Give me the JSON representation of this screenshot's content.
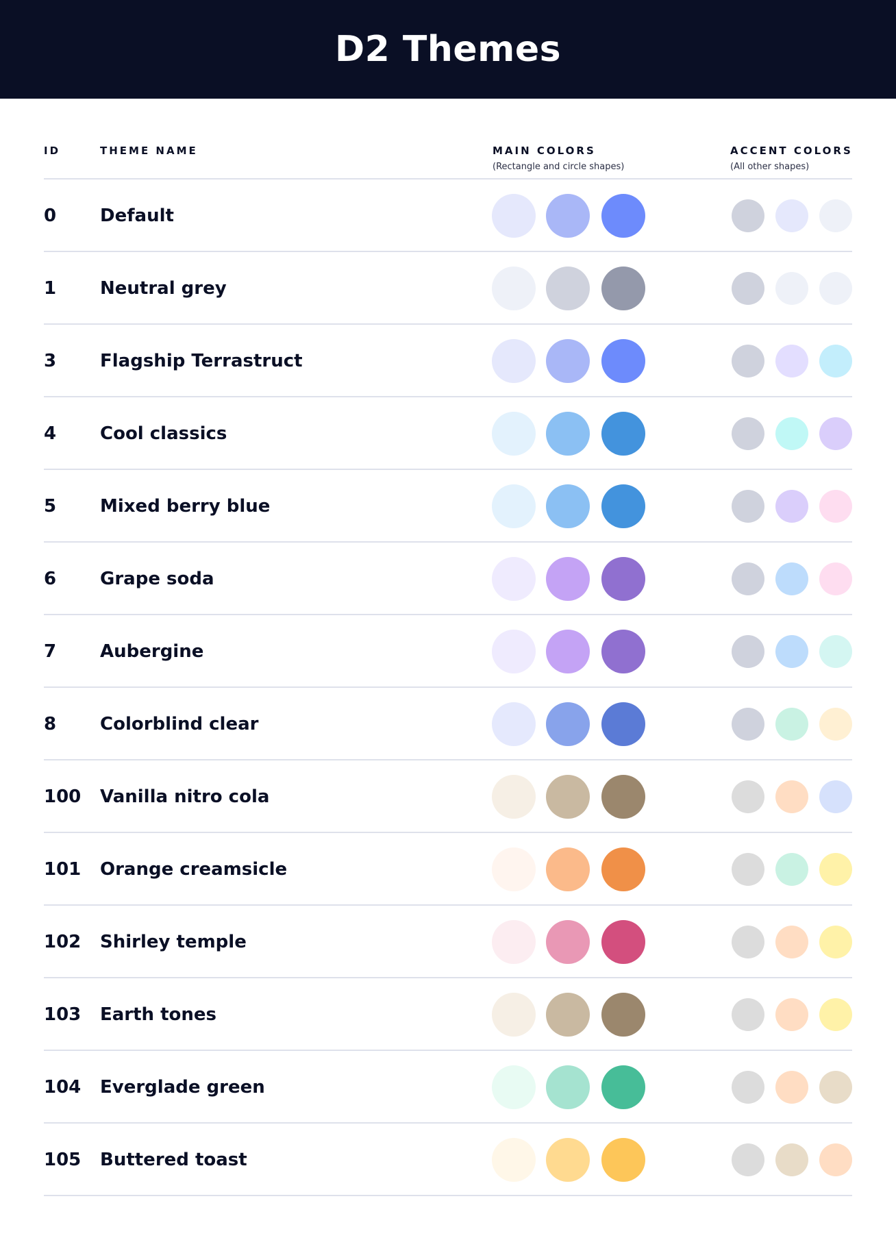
{
  "title": "D2 Themes",
  "columns": {
    "id": "ID",
    "name": "THEME NAME",
    "main": "MAIN COLORS",
    "main_sub": "(Rectangle and circle shapes)",
    "accent": "ACCENT COLORS",
    "accent_sub": "(All other shapes)"
  },
  "themes": [
    {
      "id": "0",
      "name": "Default",
      "main": [
        "#E5E8FC",
        "#A9B7F7",
        "#6D8BFC"
      ],
      "accent": [
        "#CFD2DD",
        "#E5E8FC",
        "#EEF1F8"
      ]
    },
    {
      "id": "1",
      "name": "Neutral grey",
      "main": [
        "#EEF1F8",
        "#CFD2DD",
        "#9499AB"
      ],
      "accent": [
        "#CFD2DD",
        "#EEF1F8",
        "#EEF1F8"
      ]
    },
    {
      "id": "3",
      "name": "Flagship Terrastruct",
      "main": [
        "#E5E8FC",
        "#A9B7F7",
        "#6D8BFC"
      ],
      "accent": [
        "#CFD2DD",
        "#E3DEFF",
        "#C3EEFC"
      ]
    },
    {
      "id": "4",
      "name": "Cool classics",
      "main": [
        "#E3F2FD",
        "#8BC0F3",
        "#4393DD"
      ],
      "accent": [
        "#CFD2DD",
        "#C0F8F6",
        "#DACEFB"
      ]
    },
    {
      "id": "5",
      "name": "Mixed berry blue",
      "main": [
        "#E3F2FD",
        "#8BC0F3",
        "#4393DD"
      ],
      "accent": [
        "#CFD2DD",
        "#DACEFB",
        "#FEDDF0"
      ]
    },
    {
      "id": "6",
      "name": "Grape soda",
      "main": [
        "#EFEBFE",
        "#C4A3F5",
        "#9070D0"
      ],
      "accent": [
        "#CFD2DD",
        "#BDDCFC",
        "#FEDDF0"
      ]
    },
    {
      "id": "7",
      "name": "Aubergine",
      "main": [
        "#EFEBFE",
        "#C4A3F5",
        "#9070D0"
      ],
      "accent": [
        "#CFD2DD",
        "#BDDCFC",
        "#D4F6F2"
      ]
    },
    {
      "id": "8",
      "name": "Colorblind clear",
      "main": [
        "#E5E9FD",
        "#88A3EB",
        "#5B7BD6"
      ],
      "accent": [
        "#CFD2DD",
        "#C9F2E3",
        "#FFF0D3"
      ]
    },
    {
      "id": "100",
      "name": "Vanilla nitro cola",
      "main": [
        "#F6EFE5",
        "#C9B9A1",
        "#9B876D"
      ],
      "accent": [
        "#DCDCDC",
        "#FFDDC3",
        "#D6E1FC"
      ]
    },
    {
      "id": "101",
      "name": "Orange creamsicle",
      "main": [
        "#FFF5EF",
        "#FBBA8A",
        "#F09048"
      ],
      "accent": [
        "#DCDCDC",
        "#C9F2E3",
        "#FFF2A8"
      ]
    },
    {
      "id": "102",
      "name": "Shirley temple",
      "main": [
        "#FCEDF1",
        "#E998B5",
        "#D34F7E"
      ],
      "accent": [
        "#DCDCDC",
        "#FFDDC3",
        "#FFF2A8"
      ]
    },
    {
      "id": "103",
      "name": "Earth tones",
      "main": [
        "#F6EFE5",
        "#C9B9A1",
        "#9B876D"
      ],
      "accent": [
        "#DCDCDC",
        "#FFDDC3",
        "#FFF2A8"
      ]
    },
    {
      "id": "104",
      "name": "Everglade green",
      "main": [
        "#E8FBF3",
        "#A5E3D0",
        "#47BD98"
      ],
      "accent": [
        "#DCDCDC",
        "#FFDDC3",
        "#E8DCC8"
      ]
    },
    {
      "id": "105",
      "name": "Buttered toast",
      "main": [
        "#FFF7E8",
        "#FFDA90",
        "#FDC659"
      ],
      "accent": [
        "#DCDCDC",
        "#E8DCC8",
        "#FFDDC3"
      ]
    }
  ]
}
